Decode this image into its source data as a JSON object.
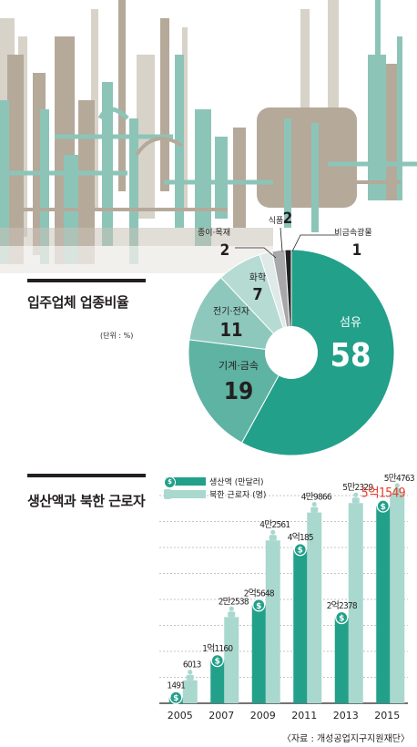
{
  "pie": {
    "title": "입주업체 업종비율",
    "unit": "(단위 : %)",
    "labels": {
      "textile": "섬유",
      "machine": "기계·금속",
      "electric": "전기·전자",
      "chemical": "화학",
      "paper": "종이·목재",
      "food": "식품",
      "nonmetal": "비금속광물"
    },
    "values": {
      "textile": "58",
      "machine": "19",
      "electric": "11",
      "chemical": "7",
      "paper": "2",
      "food": "2",
      "nonmetal": "1"
    }
  },
  "bar": {
    "title": "생산액과 북한 근로자",
    "legend_production": "생산액 (만달러)",
    "legend_workers": "북한 근로자 (명)",
    "source": "〈자료 : 개성공업지구지원재단〉",
    "icon_label": "$"
  },
  "chart_data": [
    {
      "type": "pie",
      "title": "입주업체 업종비율",
      "unit": "%",
      "slices": [
        {
          "label": "섬유",
          "value": 58,
          "color": "#22a08a"
        },
        {
          "label": "기계·금속",
          "value": 19,
          "color": "#5fb3a3"
        },
        {
          "label": "전기·전자",
          "value": 11,
          "color": "#8ec8bd"
        },
        {
          "label": "화학",
          "value": 7,
          "color": "#b5dbd3"
        },
        {
          "label": "종이·목재",
          "value": 2,
          "color": "#dfe9e7"
        },
        {
          "label": "식품",
          "value": 2,
          "color": "#a8a8aa"
        },
        {
          "label": "비금속광물",
          "value": 1,
          "color": "#231f20"
        }
      ]
    },
    {
      "type": "bar",
      "title": "생산액과 북한 근로자",
      "categories": [
        "2005",
        "2007",
        "2009",
        "2011",
        "2013",
        "2015"
      ],
      "series": [
        {
          "name": "생산액 (만달러)",
          "values": [
            1491,
            11160,
            25648,
            40185,
            22378,
            51549
          ],
          "labels": [
            "1491",
            "1억1160",
            "2억5648",
            "4억185",
            "2억2378",
            "5억1549"
          ],
          "color": "#22a08a"
        },
        {
          "name": "북한 근로자 (명)",
          "values": [
            6013,
            22538,
            42561,
            49866,
            52329,
            54763
          ],
          "labels": [
            "6013",
            "2만2538",
            "4만2561",
            "4만9866",
            "5만2329",
            "5만4763"
          ],
          "color": "#a9d8ce"
        }
      ],
      "highlight": {
        "category": "2015",
        "series": "생산액 (만달러)",
        "color": "#e8402d"
      }
    }
  ]
}
